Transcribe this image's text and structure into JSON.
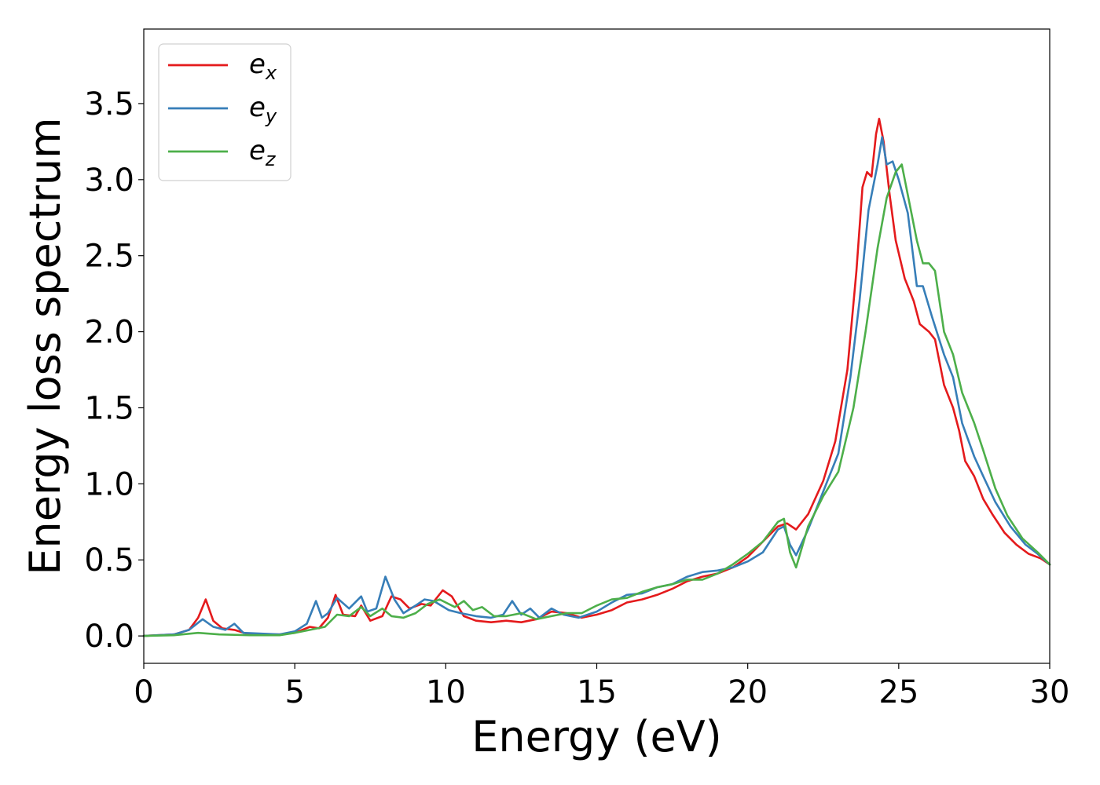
{
  "chart_data": {
    "type": "line",
    "xlabel": "Energy (eV)",
    "ylabel": "Energy loss spectrum",
    "xlim": [
      0,
      30
    ],
    "ylim": [
      -0.18,
      3.99
    ],
    "xticks": [
      "0",
      "5",
      "10",
      "15",
      "20",
      "25",
      "30"
    ],
    "yticks": [
      "0.0",
      "0.5",
      "1.0",
      "1.5",
      "2.0",
      "2.5",
      "3.0",
      "3.5"
    ],
    "grid": false,
    "legend_position": "top-left",
    "series": [
      {
        "name_base": "e",
        "name_sub": "x",
        "color": "#e41a1c",
        "points": [
          [
            0,
            0
          ],
          [
            1,
            0.01
          ],
          [
            1.5,
            0.04
          ],
          [
            1.8,
            0.12
          ],
          [
            2.05,
            0.24
          ],
          [
            2.3,
            0.1
          ],
          [
            2.6,
            0.05
          ],
          [
            3.0,
            0.04
          ],
          [
            3.5,
            0.01
          ],
          [
            4.5,
            0.01
          ],
          [
            5.0,
            0.02
          ],
          [
            5.5,
            0.06
          ],
          [
            5.8,
            0.05
          ],
          [
            6.1,
            0.12
          ],
          [
            6.35,
            0.27
          ],
          [
            6.6,
            0.14
          ],
          [
            7.0,
            0.13
          ],
          [
            7.2,
            0.2
          ],
          [
            7.5,
            0.1
          ],
          [
            7.9,
            0.13
          ],
          [
            8.2,
            0.26
          ],
          [
            8.5,
            0.24
          ],
          [
            8.8,
            0.18
          ],
          [
            9.2,
            0.21
          ],
          [
            9.5,
            0.2
          ],
          [
            9.9,
            0.3
          ],
          [
            10.2,
            0.26
          ],
          [
            10.6,
            0.13
          ],
          [
            11.0,
            0.1
          ],
          [
            11.5,
            0.09
          ],
          [
            12.0,
            0.1
          ],
          [
            12.5,
            0.09
          ],
          [
            13.0,
            0.11
          ],
          [
            13.5,
            0.16
          ],
          [
            14.0,
            0.15
          ],
          [
            14.5,
            0.12
          ],
          [
            15.0,
            0.14
          ],
          [
            15.5,
            0.17
          ],
          [
            16.0,
            0.22
          ],
          [
            16.5,
            0.24
          ],
          [
            17.0,
            0.27
          ],
          [
            17.5,
            0.31
          ],
          [
            18.0,
            0.36
          ],
          [
            18.5,
            0.39
          ],
          [
            19.0,
            0.41
          ],
          [
            19.5,
            0.45
          ],
          [
            20.0,
            0.52
          ],
          [
            20.5,
            0.62
          ],
          [
            21.0,
            0.72
          ],
          [
            21.3,
            0.74
          ],
          [
            21.6,
            0.7
          ],
          [
            22.0,
            0.8
          ],
          [
            22.5,
            1.02
          ],
          [
            22.9,
            1.28
          ],
          [
            23.3,
            1.75
          ],
          [
            23.6,
            2.4
          ],
          [
            23.8,
            2.95
          ],
          [
            23.95,
            3.05
          ],
          [
            24.1,
            3.02
          ],
          [
            24.25,
            3.3
          ],
          [
            24.35,
            3.4
          ],
          [
            24.5,
            3.25
          ],
          [
            24.7,
            2.9
          ],
          [
            24.9,
            2.6
          ],
          [
            25.2,
            2.35
          ],
          [
            25.5,
            2.2
          ],
          [
            25.7,
            2.05
          ],
          [
            26.0,
            2.0
          ],
          [
            26.2,
            1.95
          ],
          [
            26.5,
            1.65
          ],
          [
            26.8,
            1.5
          ],
          [
            27.0,
            1.35
          ],
          [
            27.2,
            1.15
          ],
          [
            27.5,
            1.05
          ],
          [
            27.8,
            0.9
          ],
          [
            28.1,
            0.8
          ],
          [
            28.5,
            0.68
          ],
          [
            28.9,
            0.6
          ],
          [
            29.3,
            0.54
          ],
          [
            29.7,
            0.51
          ],
          [
            30.0,
            0.47
          ]
        ]
      },
      {
        "name_base": "e",
        "name_sub": "y",
        "color": "#377eb8",
        "points": [
          [
            0,
            0
          ],
          [
            1,
            0.01
          ],
          [
            1.5,
            0.04
          ],
          [
            1.95,
            0.11
          ],
          [
            2.3,
            0.06
          ],
          [
            2.7,
            0.04
          ],
          [
            3.0,
            0.08
          ],
          [
            3.3,
            0.02
          ],
          [
            4.5,
            0.01
          ],
          [
            5.0,
            0.03
          ],
          [
            5.4,
            0.08
          ],
          [
            5.7,
            0.23
          ],
          [
            5.9,
            0.12
          ],
          [
            6.1,
            0.15
          ],
          [
            6.4,
            0.25
          ],
          [
            6.8,
            0.18
          ],
          [
            7.2,
            0.26
          ],
          [
            7.4,
            0.16
          ],
          [
            7.7,
            0.18
          ],
          [
            8.0,
            0.39
          ],
          [
            8.3,
            0.24
          ],
          [
            8.6,
            0.15
          ],
          [
            9.0,
            0.2
          ],
          [
            9.3,
            0.24
          ],
          [
            9.6,
            0.23
          ],
          [
            10.1,
            0.17
          ],
          [
            10.5,
            0.15
          ],
          [
            11.0,
            0.13
          ],
          [
            11.5,
            0.12
          ],
          [
            11.9,
            0.14
          ],
          [
            12.2,
            0.23
          ],
          [
            12.5,
            0.14
          ],
          [
            12.8,
            0.18
          ],
          [
            13.1,
            0.12
          ],
          [
            13.5,
            0.18
          ],
          [
            13.9,
            0.14
          ],
          [
            14.4,
            0.12
          ],
          [
            15.0,
            0.16
          ],
          [
            15.5,
            0.22
          ],
          [
            16.0,
            0.27
          ],
          [
            16.5,
            0.28
          ],
          [
            17.0,
            0.32
          ],
          [
            17.5,
            0.34
          ],
          [
            18.0,
            0.39
          ],
          [
            18.5,
            0.42
          ],
          [
            19.0,
            0.43
          ],
          [
            19.5,
            0.45
          ],
          [
            20.0,
            0.49
          ],
          [
            20.5,
            0.55
          ],
          [
            21.0,
            0.7
          ],
          [
            21.2,
            0.72
          ],
          [
            21.4,
            0.6
          ],
          [
            21.6,
            0.53
          ],
          [
            22.0,
            0.7
          ],
          [
            22.5,
            0.95
          ],
          [
            23.0,
            1.2
          ],
          [
            23.4,
            1.7
          ],
          [
            23.7,
            2.2
          ],
          [
            24.0,
            2.8
          ],
          [
            24.3,
            3.1
          ],
          [
            24.45,
            3.28
          ],
          [
            24.6,
            3.1
          ],
          [
            24.8,
            3.12
          ],
          [
            25.0,
            3.0
          ],
          [
            25.3,
            2.78
          ],
          [
            25.6,
            2.3
          ],
          [
            25.8,
            2.3
          ],
          [
            26.1,
            2.1
          ],
          [
            26.5,
            1.85
          ],
          [
            26.8,
            1.7
          ],
          [
            27.1,
            1.4
          ],
          [
            27.5,
            1.18
          ],
          [
            27.8,
            1.05
          ],
          [
            28.2,
            0.88
          ],
          [
            28.7,
            0.72
          ],
          [
            29.2,
            0.6
          ],
          [
            29.6,
            0.54
          ],
          [
            30.0,
            0.47
          ]
        ]
      },
      {
        "name_base": "e",
        "name_sub": "z",
        "color": "#4daf4a",
        "points": [
          [
            0,
            0
          ],
          [
            1,
            0.005
          ],
          [
            1.8,
            0.02
          ],
          [
            2.5,
            0.01
          ],
          [
            3.5,
            0.005
          ],
          [
            4.5,
            0.005
          ],
          [
            5.0,
            0.02
          ],
          [
            5.5,
            0.04
          ],
          [
            6.0,
            0.06
          ],
          [
            6.4,
            0.14
          ],
          [
            6.8,
            0.13
          ],
          [
            7.2,
            0.19
          ],
          [
            7.5,
            0.13
          ],
          [
            7.9,
            0.18
          ],
          [
            8.2,
            0.13
          ],
          [
            8.6,
            0.12
          ],
          [
            9.0,
            0.15
          ],
          [
            9.4,
            0.21
          ],
          [
            9.8,
            0.24
          ],
          [
            10.3,
            0.19
          ],
          [
            10.6,
            0.23
          ],
          [
            10.9,
            0.17
          ],
          [
            11.2,
            0.19
          ],
          [
            11.6,
            0.13
          ],
          [
            12.0,
            0.13
          ],
          [
            12.5,
            0.15
          ],
          [
            13.0,
            0.11
          ],
          [
            13.5,
            0.13
          ],
          [
            14.0,
            0.15
          ],
          [
            14.5,
            0.15
          ],
          [
            15.0,
            0.2
          ],
          [
            15.5,
            0.24
          ],
          [
            16.0,
            0.25
          ],
          [
            16.5,
            0.29
          ],
          [
            17.0,
            0.32
          ],
          [
            17.5,
            0.34
          ],
          [
            18.0,
            0.37
          ],
          [
            18.5,
            0.37
          ],
          [
            19.0,
            0.41
          ],
          [
            19.5,
            0.47
          ],
          [
            20.0,
            0.54
          ],
          [
            20.5,
            0.62
          ],
          [
            21.0,
            0.75
          ],
          [
            21.2,
            0.77
          ],
          [
            21.4,
            0.55
          ],
          [
            21.6,
            0.45
          ],
          [
            22.0,
            0.72
          ],
          [
            22.5,
            0.92
          ],
          [
            23.0,
            1.08
          ],
          [
            23.5,
            1.5
          ],
          [
            23.9,
            2.0
          ],
          [
            24.3,
            2.55
          ],
          [
            24.6,
            2.88
          ],
          [
            24.9,
            3.05
          ],
          [
            25.1,
            3.1
          ],
          [
            25.3,
            2.9
          ],
          [
            25.6,
            2.6
          ],
          [
            25.8,
            2.45
          ],
          [
            26.0,
            2.45
          ],
          [
            26.2,
            2.4
          ],
          [
            26.5,
            2.0
          ],
          [
            26.8,
            1.85
          ],
          [
            27.1,
            1.6
          ],
          [
            27.5,
            1.4
          ],
          [
            27.8,
            1.22
          ],
          [
            28.2,
            0.97
          ],
          [
            28.6,
            0.79
          ],
          [
            29.1,
            0.64
          ],
          [
            29.6,
            0.55
          ],
          [
            30.0,
            0.47
          ]
        ]
      }
    ]
  }
}
